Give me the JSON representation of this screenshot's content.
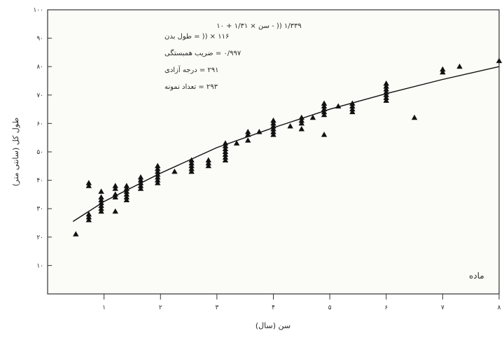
{
  "chart_data": {
    "type": "scatter",
    "title": "۱/۳۳۹ (( - سن × ۱/۳۱ + ۱۰",
    "xlabel": "سن (سال)",
    "ylabel": "طول کل (سانتی متر)",
    "xlim": [
      0,
      8
    ],
    "ylim": [
      0,
      100
    ],
    "xticks": [
      1,
      2,
      3,
      4,
      5,
      6,
      7,
      8
    ],
    "xtick_labels": [
      "۱",
      "۲",
      "۳",
      "۴",
      "۵",
      "۶",
      "۷",
      "۸"
    ],
    "yticks": [
      10,
      20,
      30,
      40,
      50,
      60,
      70,
      80,
      90,
      100
    ],
    "ytick_labels": [
      "۱۰",
      "۲۰",
      "۳۰",
      "۴۰",
      "۵۰",
      "۶۰",
      "۷۰",
      "۸۰",
      "۹۰",
      "۱۰۰"
    ],
    "grid": false,
    "legend": "none",
    "stats_box": {
      "position": "top-left",
      "lines": [
        "۱۱۶ × (( = طول بدن",
        "۰/۹۹۷ = ضریب همبستگی",
        "۲۹۱ = درجه آزادی",
        "۲۹۳ = تعداد نمونه"
      ]
    },
    "annotation": "ماده",
    "annotation_position": "bottom-right",
    "marker": "triangle",
    "marker_color": "#111111",
    "line_color": "#111111",
    "points": [
      [
        0.5,
        21
      ],
      [
        0.73,
        26
      ],
      [
        0.73,
        27
      ],
      [
        0.73,
        28
      ],
      [
        0.73,
        38
      ],
      [
        0.73,
        39
      ],
      [
        0.95,
        29
      ],
      [
        0.95,
        30
      ],
      [
        0.95,
        31
      ],
      [
        0.95,
        32
      ],
      [
        0.95,
        33
      ],
      [
        0.95,
        34
      ],
      [
        0.95,
        36
      ],
      [
        1.2,
        29
      ],
      [
        1.2,
        34
      ],
      [
        1.2,
        35
      ],
      [
        1.2,
        37
      ],
      [
        1.2,
        38
      ],
      [
        1.4,
        33
      ],
      [
        1.4,
        34
      ],
      [
        1.4,
        35
      ],
      [
        1.4,
        36
      ],
      [
        1.4,
        37
      ],
      [
        1.4,
        38
      ],
      [
        1.65,
        37
      ],
      [
        1.65,
        38
      ],
      [
        1.65,
        39
      ],
      [
        1.65,
        40
      ],
      [
        1.65,
        41
      ],
      [
        1.95,
        39
      ],
      [
        1.95,
        40
      ],
      [
        1.95,
        41
      ],
      [
        1.95,
        42
      ],
      [
        1.95,
        43
      ],
      [
        1.95,
        44
      ],
      [
        1.95,
        45
      ],
      [
        2.25,
        43
      ],
      [
        2.55,
        43
      ],
      [
        2.55,
        44
      ],
      [
        2.55,
        45
      ],
      [
        2.55,
        46
      ],
      [
        2.55,
        47
      ],
      [
        2.85,
        45
      ],
      [
        2.85,
        46
      ],
      [
        2.85,
        47
      ],
      [
        3.15,
        47
      ],
      [
        3.15,
        48
      ],
      [
        3.15,
        49
      ],
      [
        3.15,
        50
      ],
      [
        3.15,
        51
      ],
      [
        3.15,
        52
      ],
      [
        3.15,
        53
      ],
      [
        3.35,
        53
      ],
      [
        3.55,
        54
      ],
      [
        3.55,
        56
      ],
      [
        3.55,
        57
      ],
      [
        3.75,
        57
      ],
      [
        4.0,
        56
      ],
      [
        4.0,
        57
      ],
      [
        4.0,
        58
      ],
      [
        4.0,
        59
      ],
      [
        4.0,
        60
      ],
      [
        4.0,
        61
      ],
      [
        4.3,
        59
      ],
      [
        4.5,
        58
      ],
      [
        4.5,
        60
      ],
      [
        4.5,
        61
      ],
      [
        4.5,
        62
      ],
      [
        4.7,
        62
      ],
      [
        4.9,
        56
      ],
      [
        4.9,
        63
      ],
      [
        4.9,
        64
      ],
      [
        4.9,
        65
      ],
      [
        4.9,
        66
      ],
      [
        4.9,
        67
      ],
      [
        5.15,
        66
      ],
      [
        5.4,
        64
      ],
      [
        5.4,
        65
      ],
      [
        5.4,
        66
      ],
      [
        5.4,
        67
      ],
      [
        6.0,
        68
      ],
      [
        6.0,
        69
      ],
      [
        6.0,
        70
      ],
      [
        6.0,
        71
      ],
      [
        6.0,
        72
      ],
      [
        6.0,
        73
      ],
      [
        6.0,
        74
      ],
      [
        6.5,
        62
      ],
      [
        7.0,
        78
      ],
      [
        7.0,
        79
      ],
      [
        7.3,
        80
      ],
      [
        8.0,
        82
      ]
    ],
    "fit_line": {
      "x": [
        0.45,
        1.0,
        2.0,
        3.0,
        4.0,
        5.0,
        6.0,
        7.0,
        8.0
      ],
      "y": [
        25.5,
        32.5,
        42.5,
        51.5,
        58.5,
        65.0,
        70.5,
        75.5,
        80.0
      ]
    }
  }
}
